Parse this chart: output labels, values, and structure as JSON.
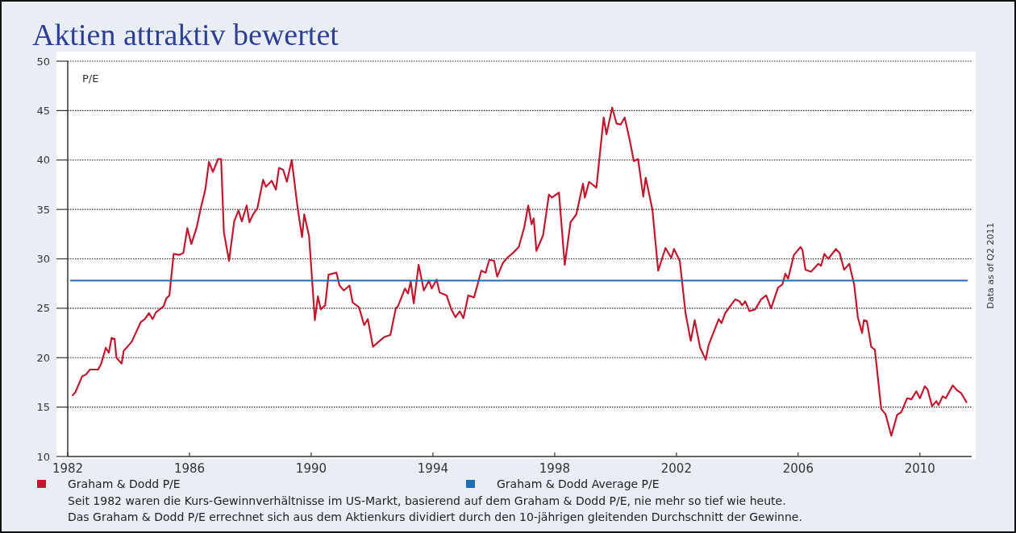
{
  "chart_data": {
    "type": "line",
    "title": "Aktien attraktiv bewertet",
    "ylabel": "P/E",
    "xlim": [
      1982,
      2011.7
    ],
    "xticks": [
      1982,
      1986,
      1990,
      1994,
      1998,
      2002,
      2006,
      2010
    ],
    "ylim": [
      10,
      50
    ],
    "yticks": [
      10,
      15,
      20,
      25,
      30,
      35,
      40,
      45,
      50
    ],
    "grid": "y",
    "legend": "bottom",
    "line_style": "solid",
    "series": [
      {
        "name": "Graham & Dodd P/E",
        "color": "#c0182f",
        "x": [
          1982.16,
          1982.25,
          1982.47,
          1982.6,
          1982.73,
          1983.0,
          1983.1,
          1983.25,
          1983.35,
          1983.44,
          1983.54,
          1983.6,
          1983.77,
          1983.84,
          1984.1,
          1984.4,
          1984.53,
          1984.67,
          1984.79,
          1984.9,
          1985.15,
          1985.24,
          1985.34,
          1985.48,
          1985.67,
          1985.8,
          1985.93,
          1986.06,
          1986.23,
          1986.37,
          1986.52,
          1986.64,
          1986.77,
          1986.94,
          1987.04,
          1987.13,
          1987.3,
          1987.47,
          1987.61,
          1987.72,
          1987.88,
          1987.97,
          1988.09,
          1988.23,
          1988.42,
          1988.51,
          1988.7,
          1988.84,
          1988.94,
          1989.08,
          1989.2,
          1989.36,
          1989.56,
          1989.7,
          1989.77,
          1989.93,
          1990.12,
          1990.22,
          1990.31,
          1990.46,
          1990.57,
          1990.83,
          1990.93,
          1991.07,
          1991.26,
          1991.36,
          1991.57,
          1991.74,
          1991.86,
          1992.03,
          1992.17,
          1992.41,
          1992.6,
          1992.78,
          1992.85,
          1993.08,
          1993.18,
          1993.27,
          1993.37,
          1993.53,
          1993.7,
          1993.87,
          1993.96,
          1994.12,
          1994.22,
          1994.45,
          1994.6,
          1994.74,
          1994.88,
          1995.0,
          1995.16,
          1995.35,
          1995.59,
          1995.73,
          1995.85,
          1996.01,
          1996.11,
          1996.3,
          1996.44,
          1996.63,
          1996.82,
          1997.0,
          1997.13,
          1997.24,
          1997.31,
          1997.4,
          1997.62,
          1997.81,
          1997.91,
          1998.14,
          1998.33,
          1998.52,
          1998.71,
          1998.93,
          1998.99,
          1999.13,
          1999.37,
          1999.61,
          1999.7,
          1999.89,
          2000.03,
          2000.17,
          2000.3,
          2000.46,
          2000.6,
          2000.74,
          2000.91,
          2000.99,
          2001.21,
          2001.4,
          2001.64,
          2001.83,
          2001.92,
          2002.11,
          2002.3,
          2002.47,
          2002.6,
          2002.78,
          2002.96,
          2003.06,
          2003.39,
          2003.48,
          2003.6,
          2003.93,
          2004.07,
          2004.16,
          2004.26,
          2004.4,
          2004.59,
          2004.78,
          2004.95,
          2005.11,
          2005.34,
          2005.48,
          2005.58,
          2005.67,
          2005.86,
          2006.08,
          2006.14,
          2006.24,
          2006.42,
          2006.66,
          2006.75,
          2006.86,
          2006.99,
          2007.24,
          2007.36,
          2007.51,
          2007.68,
          2007.84,
          2007.96,
          2008.1,
          2008.16,
          2008.26,
          2008.4,
          2008.52,
          2008.73,
          2008.87,
          2009.06,
          2009.25,
          2009.39,
          2009.58,
          2009.72,
          2009.88,
          2010.0,
          2010.16,
          2010.25,
          2010.4,
          2010.54,
          2010.61,
          2010.75,
          2010.85,
          2011.08,
          2011.22,
          2011.36,
          2011.53
        ],
        "values": [
          16.2,
          16.5,
          18.1,
          18.3,
          18.8,
          18.8,
          19.4,
          21.0,
          20.5,
          22.0,
          21.9,
          20.0,
          19.4,
          20.7,
          21.6,
          23.6,
          23.9,
          24.5,
          23.9,
          24.6,
          25.2,
          26.0,
          26.3,
          30.5,
          30.4,
          30.6,
          33.1,
          31.5,
          33.1,
          35.1,
          37.0,
          39.8,
          38.8,
          40.1,
          40.1,
          32.7,
          29.8,
          33.8,
          34.9,
          33.8,
          35.4,
          33.7,
          34.5,
          35.1,
          38.0,
          37.3,
          37.9,
          37.0,
          39.2,
          39.0,
          37.8,
          40.0,
          35.0,
          32.2,
          34.5,
          32.3,
          23.8,
          26.2,
          24.9,
          25.3,
          28.4,
          28.6,
          27.3,
          26.8,
          27.3,
          25.6,
          25.1,
          23.3,
          23.9,
          21.1,
          21.5,
          22.1,
          22.3,
          25.0,
          25.2,
          27.0,
          26.5,
          27.7,
          25.5,
          29.4,
          26.8,
          27.8,
          27.0,
          27.9,
          26.6,
          26.3,
          24.9,
          24.1,
          24.7,
          24.0,
          26.3,
          26.1,
          28.8,
          28.6,
          29.9,
          29.8,
          28.2,
          29.6,
          30.1,
          30.6,
          31.2,
          33.2,
          35.4,
          33.5,
          34.1,
          30.8,
          32.4,
          36.5,
          36.2,
          36.7,
          29.4,
          33.7,
          34.5,
          37.6,
          36.2,
          37.8,
          37.2,
          44.3,
          42.6,
          45.3,
          43.7,
          43.6,
          44.3,
          42.1,
          39.9,
          40.1,
          36.3,
          38.2,
          35.0,
          28.8,
          31.1,
          30.1,
          31.0,
          29.8,
          24.5,
          21.7,
          23.8,
          21.0,
          19.8,
          21.3,
          23.9,
          23.5,
          24.5,
          25.9,
          25.7,
          25.3,
          25.7,
          24.7,
          24.9,
          25.9,
          26.3,
          25.0,
          27.1,
          27.4,
          28.5,
          28.0,
          30.4,
          31.2,
          30.9,
          28.9,
          28.7,
          29.5,
          29.3,
          30.5,
          30.0,
          31.0,
          30.6,
          28.9,
          29.5,
          27.4,
          24.1,
          22.5,
          23.8,
          23.7,
          21.1,
          20.8,
          14.8,
          14.3,
          12.1,
          14.2,
          14.5,
          15.9,
          15.8,
          16.6,
          15.9,
          17.1,
          16.8,
          15.1,
          15.6,
          15.2,
          16.1,
          15.9,
          17.2,
          16.7,
          16.4,
          15.5
        ]
      },
      {
        "name": "Graham & Dodd Average P/E",
        "color": "#1f6db4",
        "x": [
          1982.1,
          2011.55
        ],
        "values": [
          27.8,
          27.8
        ]
      }
    ],
    "annotations": [
      "Seit 1982 waren die Kurs-Gewinnverhältnisse im US-Markt, basierend auf dem Graham & Dodd P/E, nie mehr so tief wie heute.",
      "Das Graham & Dodd P/E  errechnet sich aus dem Aktienkurs dividiert durch den 10-jährigen gleitenden Durchschnitt der Gewinne.",
      "Data as of Q2 2011"
    ]
  }
}
